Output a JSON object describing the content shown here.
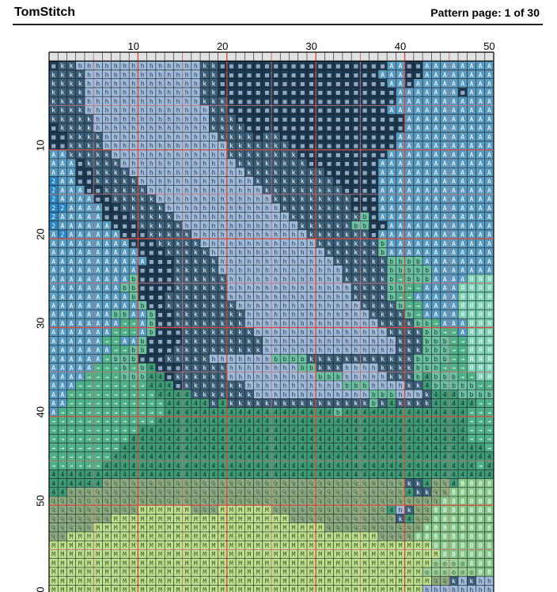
{
  "header": {
    "brand": "TomStitch",
    "page_info": "Pattern page: 1 of 30"
  },
  "grid": {
    "cols": 50,
    "rows_visible": 60,
    "major_every": 10,
    "mid_every": 5,
    "col_labels": [
      "10",
      "20",
      "30",
      "40",
      "50"
    ],
    "row_labels": [
      "10",
      "20",
      "30",
      "40",
      "50",
      "0"
    ]
  },
  "palette": {
    "k": {
      "bg": "#3a5d78",
      "fg": "#ffffff"
    },
    "h": {
      "bg": "#9fb9d9",
      "fg": "#2a3d55"
    },
    "D": {
      "bg": "#1d3a55",
      "fg": "#b0c4d8"
    },
    "A": {
      "bg": "#5a9bc2",
      "fg": "#ffffff"
    },
    "2": {
      "bg": "#2a85c0",
      "fg": "#ffffff"
    },
    "b": {
      "bg": "#6bbfa3",
      "fg": "#1a3a30"
    },
    ">": {
      "bg": "#4fb08a",
      "fg": "#ffffff"
    },
    "4": {
      "bg": "#3f9a78",
      "fg": "#0f2e24"
    },
    "R": {
      "bg": "#7cd0b5",
      "fg": "#ffffff"
    },
    "C": {
      "bg": "#8dab82",
      "fg": "#2d4a2d"
    },
    "M": {
      "bg": "#bfe08e",
      "fg": "#3c5a2a"
    },
    "B": {
      "bg": "#86c98a",
      "fg": "#ffffff"
    },
    "o": {
      "bg": "#9bcf95",
      "fg": "#2c5a30"
    },
    "e": {
      "bg": "#dddddd",
      "fg": "#888888"
    }
  },
  "symbol_glyphs": {
    "k": "k",
    "h": "h",
    "D": "▩",
    "A": "A",
    "2": "2",
    "b": "b",
    ">": "→",
    "4": "4",
    "R": "Я",
    "C": "₠",
    "M": "M",
    "B": "8",
    "o": "◎",
    "e": ""
  },
  "pattern_rows": [
    "DkkhhhhhhhhhhhhhhkkDDDDDDDDDDDDDDDDDDDAADDAAAAAAAA",
    "kkkkhhhhhhhhhhhhhkkDDDDDDDDDDDDDDDDDDAAADDAAAAAAAA",
    "kkkkhhhhhhhhhhhhhkkDDDDDDDDDDDDDDDDDDDAADAAAAAAAAA",
    "kkkkhhhhhhhhhhhhhkkDDDDDDDDDDDDDDDDDDDDAAAAAAADAAA",
    "kkkkhhhhhhhhhhhhhkkkDDDDDDDDDDDDDDDDDDDAAAAAAAAAAA",
    "kkkkhhhhhhhhhhhhhhkkDDDDDDDDDDDDDDDDDDAAAAAAAAAAAA",
    "kkkkkhhhhhhhhhhhhhkkkDDDDDDDDDDDDDDDDDDDAAAAAAAAAA",
    "DkkkkhhhhhhhhhhhhhkkkkDDDDDDDDDDDDDDDDDDAAAAAAAAAA",
    "DDkkkkhhhhhhhhhhhhhkkkkDkkDDDDDDDDDDDDDAAAAAAAAAAA",
    "DDkkkkhhhhhhhhhhhhhhkkkkkkkDDDDDDDDDDDDAAAAAAAAAAA",
    "AAkkkkkhhhhhhhhhhhhhkkkkkkkkDDDDDDDDDDAAAAAAAAAAAA",
    "AAADkkkkhhhhhhhhhhhhhkkkkkkkkDDDDDDDDAAAAAAAAAAAAA",
    "AAADDkkkkhhhhhhhhhhhhhkkkkkkkkkDDDDDDAAAAAAAAAAAAA",
    "2AADDkkkkkhhhhhhhhhhhhhkkkkkkkkkDDDDDAAAAAAAAAAAAA",
    "2AAADDkkkkkhhhhhhhhhhhhhkkkkkkkkkDDDDAAAAAAAAAAAAA",
    "2AAAADDkkkkkhhhhhhhhhhhhhkkkkkkkkkDDDAAAAAAAAAAAAA",
    "22AAAADDkkkkkhhhhhhhhhhhhhkkkkkkkkDDDAAAAAAAAAAAAA",
    "2AAAAADDDkkkkkhhhhhhhhhhhhhkkkkkkkkbDAAAAAAAAAAAAA",
    "2AAAAAADDDkkkkkhhhhhhhhhhhhhkkkkkkbbDDAAAAAAAAAAAA",
    "A2AAAAAADDDkkkkkhhhhhhhhhhhhhkkkkkkkDAAAAAAAAAAAAA",
    "AAAAAAAAADDDkkkkkhhhhhhhhhhhhhkkkkkkkbAAAAAAAAAAAA",
    "AAAAAAAAAADDDkkkkkhhhhhhhhhhhhhkkkkkkbAAAAAAAAAAAA",
    "AAAAAAAAAAADDDkkkkkhhhhhhhhhhhhhkkkkkkbbbbAAAAAAAA",
    "AAAAAAAAAADDDDkkkkkhhhhhhhhhhhhhhkkkkkbbbbbAAAAAAA",
    "AAAAAAAAAbDDDDkkkkkkhhhhhhhhhhhhhkkkkkb>bbbAAAARRR",
    "AAAAAAAAbbDDDDkkkkkkhhhhhhhhhhhhhhkkkkbb>>AAAARRRR",
    "AAAAAAAAAbDDDkkkkkkkhhhhhhhhhhhhhhkkkkb>>AAAAARRRR",
    "AAAAAAAAAAbDDkkkkkkkkhhhhhhhhhhhhhhkkkkb>>AAAARRRR",
    "AAAAAAAbbAAbDDkkkkkkkkhhhhhhhhhhhhhhkkkkb>AAAARRRR",
    "AAAAAAAA>>AbDDkkkkkkkkhhhhhhhhhhhhhhhkkkkbb>AAARRR",
    "AAAAAAA>>>AbDDDkkkkkkkkhhhhhhhhhhhhhhhkkkkbb>>ARRR",
    "AAAAAA>>AAbDDDDkkkkkkkkkhhhhhhhhhhhhhhhkkkbbb>>RRR",
    "AAAAAAA>>bbDDDkkkkkkkkkkhhhhhhhhhhhhhhhkkkbbb>>RRR",
    "AAAAAA>bbbDDDkkkkkhhhhhhhbbbbkkkkkkkkkkkkbbbb>>RRR",
    "AAAAA>>>b>b4DDDkkkkkhhhhhhhhbbkkkhhhhkkkkbbb>>>RRR",
    "AAAA>>>>bbb44Dkkkkkkhhhhhhhhhhbbbhhhhhkkkb4bbb>>RR",
    "AAA>>>>>>>>444Dkkkkkkkhhhhhhhhhhhbbbhhhhkk4bbbbb>>",
    "AA>>>>>>>>>>4444kkkkkkkhhhhhhhhhhhhhbbbhhhk444bbbb",
    "AA>>>>>>>>>>>44444k4kkkkkkkkkkkkkkkkbk4kkkk44444>>",
    "A>>>>>>>>>>>>4444444444444444444b44444444444444>>>",
    ">>>>>>>>>>>>44444444444444444444444444444444444>>>",
    ">>>>>>>>>>4444444444444444444444444444444444444>>>",
    ">>>>>>>>>44444444444444444444444444444444444444>>>",
    ">>>>>>>>44444444444444444444444444444444444444444>",
    ">>>>>>>4444444444444444444444444444444444444444444",
    ">>>>>>444444444444444444444444444444444444444444>4",
    "44444444444444444444444444444444444444444444444444",
    "444444CCCCCCCCCCCCCCCCCCCCCCCCCCCCCCCCCCkk4CC4BBBB",
    "44CCCCCCCCCCCCCCCCCCCCCCCCCCCCCCCCCCCCCC4kkCCBBBBB",
    "CCCCCCCCCCCCCCCCCCCCCCCCCCCCCCCCCCCCCCCCCCCCBBBBBB",
    "CCCCCCCCCCMMMMMMCCCMMMMMMCCCCCCCCCCCCC4hkCCBBBBBBB",
    "CCCCCCCMMMMMMMMMMMMMMMMMMMMCCCCCCCCCCCCk4CCBBBBBBB",
    "CCCCCMMMMMMMMMMMMMMMMMMMMMMMMMMCCCCCCCCCCCBBBBBBBB",
    "CCMMMMMMMMMMMMMMMMMMMMMMMMMMMMMMMMMMMCCCCBBBBBBBBB",
    "MMMMMMMMMMMMMMMMMMMMMMMMMMMMMMMMMMMMMMMMMMMBBBBBBB",
    "MMMMMMMMMMMMMMMMMMMMMMMMMMMMMMMMMMMMMMMMMMMMBBBBBB",
    "MMMMMMMMMMMMMMMMMMMMMMMMMMMMMMMMMMMMMMMMMMMooooBBB",
    "MMMMMMMMMMMMMMMMMMMMMMMMMMMMMMMMMMMMMMMMMMooooooBB",
    "MMMMMMMMMMMMMMMMMMMMMMMMMMMMMMMMMMMMMMMMMMMCCkhkhh",
    "MMMMMMMMMMMMMMMMMMMMMMMMMMMMMMMMMMMMMMMMMMhhhhhhhh"
  ]
}
